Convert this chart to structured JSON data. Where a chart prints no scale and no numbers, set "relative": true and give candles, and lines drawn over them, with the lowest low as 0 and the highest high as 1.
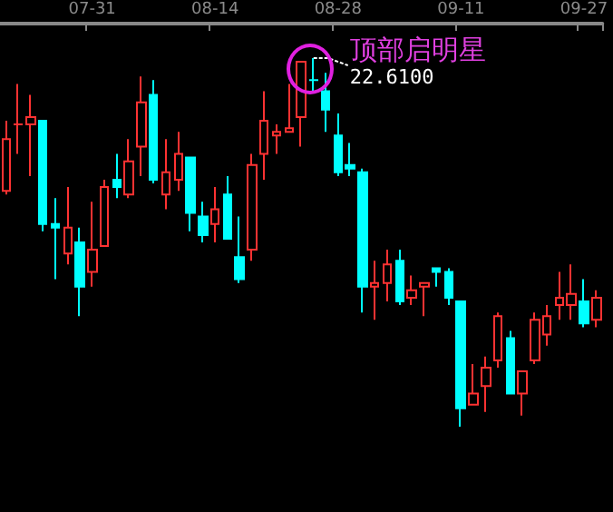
{
  "chart_data": {
    "type": "candlestick",
    "relative": true,
    "categories": [
      null,
      null,
      null,
      null,
      null,
      null,
      null,
      "07-31",
      null,
      null,
      null,
      null,
      null,
      null,
      null,
      null,
      null,
      "08-14",
      null,
      null,
      null,
      null,
      null,
      null,
      null,
      null,
      null,
      "08-28",
      null,
      null,
      null,
      null,
      null,
      null,
      null,
      null,
      null,
      "09-11",
      null,
      null,
      null,
      null,
      null,
      null,
      null,
      null,
      null,
      "09-27",
      null
    ],
    "ohlc": [
      [
        0.64,
        0.83,
        0.63,
        0.78
      ],
      [
        0.82,
        0.93,
        0.74,
        0.82
      ],
      [
        0.82,
        0.9,
        0.68,
        0.84
      ],
      [
        0.83,
        0.83,
        0.53,
        0.55
      ],
      [
        0.55,
        0.62,
        0.4,
        0.54
      ],
      [
        0.47,
        0.65,
        0.44,
        0.54
      ],
      [
        0.5,
        0.54,
        0.3,
        0.38
      ],
      [
        0.42,
        0.61,
        0.38,
        0.48
      ],
      [
        0.49,
        0.67,
        0.49,
        0.65
      ],
      [
        0.67,
        0.74,
        0.62,
        0.65
      ],
      [
        0.63,
        0.78,
        0.62,
        0.72
      ],
      [
        0.76,
        0.95,
        0.68,
        0.88
      ],
      [
        0.9,
        0.94,
        0.66,
        0.67
      ],
      [
        0.63,
        0.78,
        0.59,
        0.69
      ],
      [
        0.67,
        0.8,
        0.64,
        0.74
      ],
      [
        0.73,
        0.73,
        0.53,
        0.58
      ],
      [
        0.57,
        0.61,
        0.5,
        0.52
      ],
      [
        0.55,
        0.65,
        0.5,
        0.59
      ],
      [
        0.63,
        0.68,
        0.51,
        0.51
      ],
      [
        0.46,
        0.57,
        0.39,
        0.4
      ],
      [
        0.48,
        0.74,
        0.45,
        0.71
      ],
      [
        0.74,
        0.91,
        0.67,
        0.83
      ],
      [
        0.79,
        0.82,
        0.74,
        0.8
      ],
      [
        0.8,
        0.93,
        0.8,
        0.81
      ],
      [
        0.84,
        0.99,
        0.76,
        0.99
      ],
      [
        0.94,
        1.0,
        0.91,
        0.94
      ],
      [
        0.91,
        0.96,
        0.8,
        0.86
      ],
      [
        0.79,
        0.85,
        0.68,
        0.69
      ],
      [
        0.71,
        0.77,
        0.68,
        0.7
      ],
      [
        0.69,
        0.7,
        0.31,
        0.38
      ],
      [
        0.38,
        0.45,
        0.29,
        0.39
      ],
      [
        0.39,
        0.48,
        0.34,
        0.44
      ],
      [
        0.45,
        0.48,
        0.33,
        0.34
      ],
      [
        0.35,
        0.41,
        0.33,
        0.37
      ],
      [
        0.38,
        0.39,
        0.3,
        0.39
      ],
      [
        0.43,
        0.43,
        0.38,
        0.42
      ],
      [
        0.42,
        0.43,
        0.33,
        0.35
      ],
      [
        0.34,
        0.34,
        0,
        0.05
      ],
      [
        0.06,
        0.17,
        0.06,
        0.09
      ],
      [
        0.11,
        0.19,
        0.04,
        0.16
      ],
      [
        0.18,
        0.31,
        0.16,
        0.3
      ],
      [
        0.24,
        0.26,
        0.09,
        0.09
      ],
      [
        0.09,
        0.15,
        0.03,
        0.15
      ],
      [
        0.18,
        0.31,
        0.17,
        0.29
      ],
      [
        0.25,
        0.33,
        0.22,
        0.3
      ],
      [
        0.33,
        0.42,
        0.29,
        0.35
      ],
      [
        0.33,
        0.44,
        0.29,
        0.36
      ],
      [
        0.34,
        0.4,
        0.27,
        0.28
      ],
      [
        0.29,
        0.37,
        0.27,
        0.35
      ]
    ],
    "annotations": [
      "顶部启明星",
      "22.6100"
    ]
  }
}
